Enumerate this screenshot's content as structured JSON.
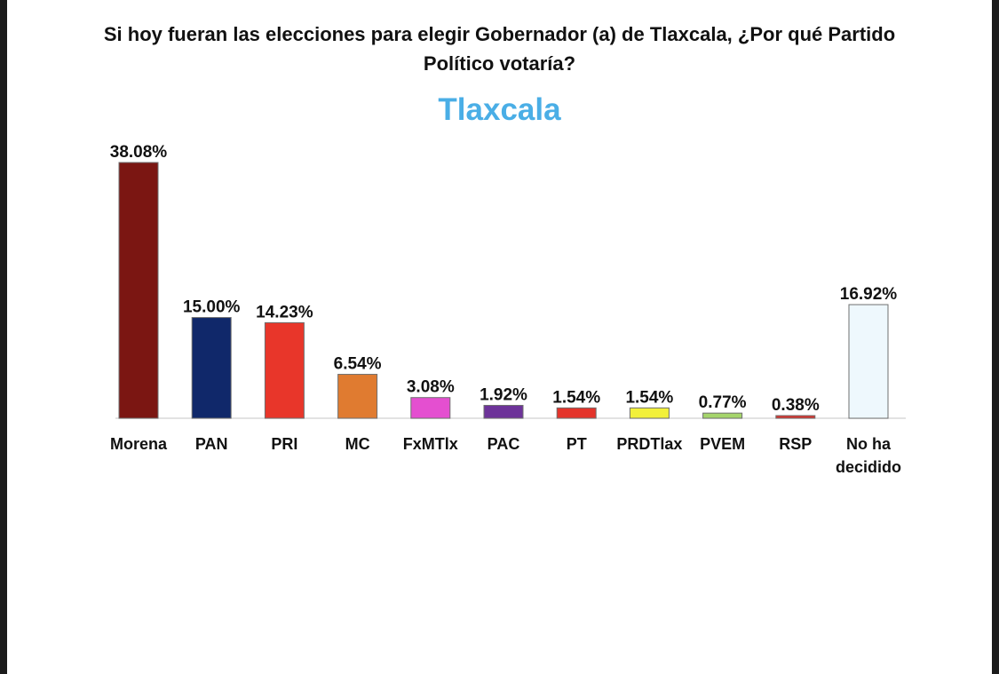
{
  "question": {
    "line1": "Si hoy fueran las elecciones para elegir Gobernador (a) de Tlaxcala, ¿Por qué Partido",
    "line2": "Político votaría?"
  },
  "region": "Tlaxcala",
  "colors": {
    "region_text": "#4aaee6",
    "background": "#ffffff"
  },
  "chart_data": {
    "type": "bar",
    "categories": [
      "Morena",
      "PAN",
      "PRI",
      "MC",
      "FxMTlx",
      "PAC",
      "PT",
      "PRDTlax",
      "PVEM",
      "RSP",
      "No ha decidido"
    ],
    "category_lines": [
      [
        "Morena"
      ],
      [
        "PAN"
      ],
      [
        "PRI"
      ],
      [
        "MC"
      ],
      [
        "FxMTlx"
      ],
      [
        "PAC"
      ],
      [
        "PT"
      ],
      [
        "PRDTlax"
      ],
      [
        "PVEM"
      ],
      [
        "RSP"
      ],
      [
        "No ha",
        "decidido"
      ]
    ],
    "values": [
      38.08,
      15.0,
      14.23,
      6.54,
      3.08,
      1.92,
      1.54,
      1.54,
      0.77,
      0.38,
      16.92
    ],
    "value_labels": [
      "38.08%",
      "15.00%",
      "14.23%",
      "6.54%",
      "3.08%",
      "1.92%",
      "1.54%",
      "1.54%",
      "0.77%",
      "0.38%",
      "16.92%"
    ],
    "colors": [
      "#7b1612",
      "#10286a",
      "#e8362a",
      "#e07b30",
      "#e44fd0",
      "#6d3399",
      "#e4342b",
      "#f2f03a",
      "#a5d56b",
      "#d8322c",
      "#eef8fd"
    ],
    "title": "Tlaxcala",
    "xlabel": "",
    "ylabel": "",
    "ylim": [
      0,
      38.08
    ],
    "grid": false,
    "legend": "none"
  }
}
